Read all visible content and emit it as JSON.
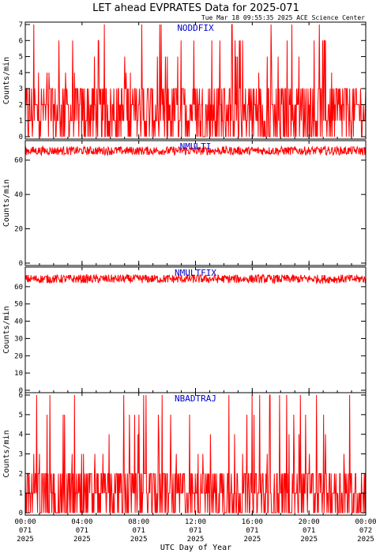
{
  "title": "LET ahead EVPRATES Data for 2025-071",
  "timestamp": "Tue Mar 18 09:55:35 2025 ACE Science Center",
  "chart_data": {
    "type": "line",
    "xlabel": "UTC Day of Year",
    "x_ticks": [
      {
        "time": "00:00",
        "doy": "071",
        "year": "2025"
      },
      {
        "time": "04:00",
        "doy": "071",
        "year": "2025"
      },
      {
        "time": "08:00",
        "doy": "071",
        "year": "2025"
      },
      {
        "time": "12:00",
        "doy": "071",
        "year": "2025"
      },
      {
        "time": "16:00",
        "doy": "071",
        "year": "2025"
      },
      {
        "time": "20:00",
        "doy": "071",
        "year": "2025"
      },
      {
        "time": "00:00",
        "doy": "072",
        "year": "2025"
      }
    ],
    "xlim_hours": [
      0,
      24
    ],
    "series_color": "#ff0000",
    "label_color": "#0000cc",
    "panels": [
      {
        "label": "NODDFIX",
        "ylabel": "Counts/min",
        "ylim": [
          0,
          7
        ],
        "yticks": [
          0,
          1,
          2,
          3,
          4,
          5,
          6,
          7
        ],
        "mode": "noisy",
        "typical_range": [
          0,
          3
        ],
        "peak_max": 7
      },
      {
        "label": "NMULTI",
        "ylabel": "Counts/min",
        "ylim": [
          0,
          70
        ],
        "yticks": [
          0,
          20,
          40,
          60
        ],
        "mode": "band",
        "typical_range": [
          63,
          68
        ]
      },
      {
        "label": "NMULTFIX",
        "ylabel": "Counts/min",
        "ylim": [
          0,
          70
        ],
        "yticks": [
          0,
          10,
          20,
          30,
          40,
          50,
          60
        ],
        "mode": "band",
        "typical_range": [
          62,
          67
        ]
      },
      {
        "label": "NBADTRAJ",
        "ylabel": "Counts/min",
        "ylim": [
          0,
          6
        ],
        "yticks": [
          0,
          1,
          2,
          3,
          4,
          5,
          6
        ],
        "mode": "noisy",
        "typical_range": [
          0,
          2
        ],
        "peak_max": 6
      }
    ]
  }
}
